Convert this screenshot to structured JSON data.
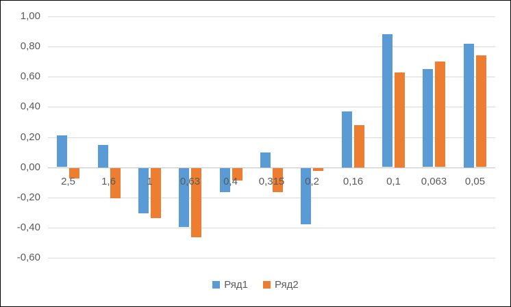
{
  "colors": {
    "series1": "#5B9BD5",
    "series2": "#ED7D31",
    "gridline": "#D9D9D9",
    "axis_line": "#C3C3C3",
    "text": "#595959",
    "frame_border": "#000000",
    "background": "#FFFFFF"
  },
  "chart_data": {
    "type": "bar",
    "title": "",
    "xlabel": "",
    "ylabel": "",
    "grid": true,
    "categories": [
      "2,5",
      "1,6",
      "1",
      "0,63",
      "0,4",
      "0,315",
      "0,2",
      "0,16",
      "0,1",
      "0,063",
      "0,05"
    ],
    "series": [
      {
        "name": "Ряд1",
        "color": "#5B9BD5",
        "values": [
          0.21,
          0.15,
          -0.3,
          -0.39,
          -0.16,
          0.1,
          -0.37,
          0.37,
          0.88,
          0.65,
          0.82
        ]
      },
      {
        "name": "Ряд2",
        "color": "#ED7D31",
        "values": [
          -0.07,
          -0.2,
          -0.33,
          -0.46,
          -0.08,
          -0.16,
          -0.02,
          0.28,
          0.63,
          0.7,
          0.74
        ]
      }
    ],
    "y_axis": {
      "min": -0.6,
      "max": 1.0,
      "step": 0.2,
      "tick_labels": [
        "1,00",
        "0,80",
        "0,60",
        "0,40",
        "0,20",
        "0,00",
        "-0,20",
        "-0,40",
        "-0,60"
      ]
    },
    "legend": {
      "position": "bottom",
      "entries": [
        "Ряд1",
        "Ряд2"
      ]
    }
  }
}
